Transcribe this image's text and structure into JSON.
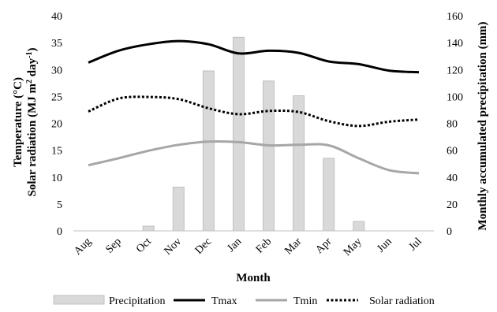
{
  "chart_data": {
    "type": "bar+line",
    "categories": [
      "Aug",
      "Sep",
      "Oct",
      "Nov",
      "Dec",
      "Jan",
      "Feb",
      "Mar",
      "Apr",
      "May",
      "Jun",
      "Jul"
    ],
    "xlabel": "Month",
    "ylabel_left_line1": "Temperature (°C)",
    "ylabel_left_line2_prefix": "Solar radiation (MJ m",
    "ylabel_left_sup1": "2",
    "ylabel_left_mid": " day",
    "ylabel_left_sup2": "-1",
    "ylabel_left_suffix": ")",
    "ylabel_right": "Monthly accumulated precipitation (mm)",
    "ylim_left": [
      0,
      40
    ],
    "yticks_left": [
      "0",
      "5",
      "10",
      "15",
      "20",
      "25",
      "30",
      "35",
      "40"
    ],
    "ylim_right": [
      0,
      160
    ],
    "yticks_right": [
      "0",
      "20",
      "40",
      "60",
      "80",
      "100",
      "120",
      "140",
      "160"
    ],
    "grid": false,
    "legend_position": "bottom",
    "series": [
      {
        "name": "Precipitation",
        "type": "bar",
        "axis": "right",
        "color": "#d9d9d9",
        "values": [
          0,
          0,
          3.5,
          32.5,
          119,
          144,
          111.5,
          100.5,
          54,
          7,
          0,
          0
        ]
      },
      {
        "name": "Tmax",
        "type": "line",
        "axis": "left",
        "color": "#000000",
        "style": "solid",
        "values": [
          31.3,
          33.5,
          34.7,
          35.3,
          34.7,
          33.0,
          33.5,
          33.1,
          31.5,
          31.0,
          29.8,
          29.5
        ]
      },
      {
        "name": "Tmin",
        "type": "line",
        "axis": "left",
        "color": "#a6a6a6",
        "style": "solid",
        "values": [
          12.2,
          13.5,
          14.9,
          16.0,
          16.6,
          16.5,
          15.9,
          16.0,
          15.9,
          13.5,
          11.3,
          10.7
        ]
      },
      {
        "name": "Solar radiation",
        "type": "line",
        "axis": "left",
        "color": "#000000",
        "style": "dotted",
        "values": [
          22.2,
          24.6,
          24.9,
          24.5,
          22.8,
          21.7,
          22.3,
          22.1,
          20.4,
          19.5,
          20.3,
          20.7
        ]
      }
    ]
  }
}
